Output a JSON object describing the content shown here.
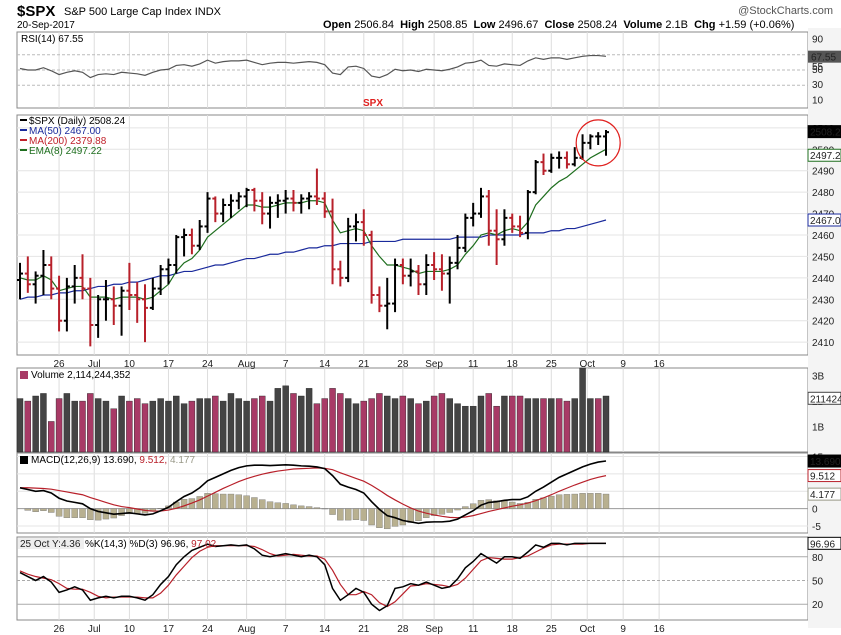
{
  "header": {
    "symbol": "$SPX",
    "description": "S&P 500 Large Cap Index",
    "exchange": "INDX",
    "date": "20-Sep-2017",
    "ohlc": {
      "open_label": "Open",
      "open": "2506.84",
      "high_label": "High",
      "high": "2508.85",
      "low_label": "Low",
      "low": "2496.67",
      "close_label": "Close",
      "close": "2508.24",
      "volume_label": "Volume",
      "volume": "2.1B",
      "chg_label": "Chg",
      "chg": "+1.59 (+0.06%)"
    },
    "watermark": "@StockCharts.com"
  },
  "annotation": {
    "text": "SPX",
    "color": "#e0201e"
  },
  "colors": {
    "up": "#000000",
    "down": "#b8202a",
    "ma50": "#1a2a9c",
    "ma200": "#c0202a",
    "ema8": "#1e6e1e",
    "vol_up": "#444444",
    "vol_down": "#a83a66",
    "macd": "#000000",
    "signal": "#b8202a",
    "hist": "#b8b090",
    "rsi": "#555555"
  },
  "chart_data": {
    "type": "line",
    "x_labels": [
      "26",
      "Jul",
      "10",
      "17",
      "24",
      "Aug",
      "7",
      "14",
      "21",
      "28",
      "Sep",
      "11",
      "18",
      "25",
      "Oct",
      "9",
      "16"
    ],
    "price": {
      "legend": [
        "$SPX (Daily) 2508.24",
        "MA(50) 2467.00",
        "MA(200) 2379.88",
        "EMA(8) 2497.22"
      ],
      "yticks": [
        2410,
        2420,
        2430,
        2440,
        2450,
        2460,
        2470,
        2480,
        2490,
        2500,
        2510
      ],
      "ylim": [
        2404,
        2516
      ],
      "last_labels": [
        "2508.24",
        "2497.22",
        "2467.00"
      ],
      "ohlc": [
        [
          2439,
          2447,
          2430,
          2442
        ],
        [
          2442,
          2450,
          2433,
          2437
        ],
        [
          2437,
          2443,
          2428,
          2441
        ],
        [
          2441,
          2453,
          2432,
          2446
        ],
        [
          2446,
          2450,
          2430,
          2435
        ],
        [
          2435,
          2441,
          2415,
          2420
        ],
        [
          2420,
          2440,
          2415,
          2436
        ],
        [
          2436,
          2446,
          2428,
          2440
        ],
        [
          2440,
          2451,
          2430,
          2435
        ],
        [
          2435,
          2440,
          2408,
          2418
        ],
        [
          2418,
          2432,
          2412,
          2430
        ],
        [
          2430,
          2439,
          2420,
          2430
        ],
        [
          2430,
          2436,
          2418,
          2427
        ],
        [
          2427,
          2436,
          2413,
          2434
        ],
        [
          2434,
          2447,
          2425,
          2432
        ],
        [
          2432,
          2438,
          2419,
          2430
        ],
        [
          2430,
          2437,
          2410,
          2426
        ],
        [
          2426,
          2440,
          2425,
          2435
        ],
        [
          2435,
          2446,
          2432,
          2444
        ],
        [
          2444,
          2449,
          2437,
          2446
        ],
        [
          2446,
          2460,
          2442,
          2459
        ],
        [
          2459,
          2463,
          2450,
          2460
        ],
        [
          2460,
          2463,
          2451,
          2455
        ],
        [
          2455,
          2467,
          2453,
          2464
        ],
        [
          2464,
          2480,
          2461,
          2477
        ],
        [
          2477,
          2478,
          2466,
          2470
        ],
        [
          2470,
          2477,
          2466,
          2474
        ],
        [
          2474,
          2479,
          2468,
          2476
        ],
        [
          2476,
          2480,
          2472,
          2478
        ],
        [
          2478,
          2482,
          2473,
          2481
        ],
        [
          2481,
          2482,
          2471,
          2476
        ],
        [
          2476,
          2480,
          2465,
          2470
        ],
        [
          2470,
          2478,
          2463,
          2475
        ],
        [
          2475,
          2479,
          2468,
          2476
        ],
        [
          2476,
          2481,
          2470,
          2477
        ],
        [
          2477,
          2481,
          2471,
          2475
        ],
        [
          2475,
          2479,
          2470,
          2477
        ],
        [
          2477,
          2480,
          2472,
          2478
        ],
        [
          2478,
          2491,
          2474,
          2477
        ],
        [
          2477,
          2480,
          2468,
          2471
        ],
        [
          2471,
          2477,
          2437,
          2444
        ],
        [
          2444,
          2448,
          2436,
          2440
        ],
        [
          2440,
          2468,
          2438,
          2464
        ],
        [
          2464,
          2470,
          2457,
          2466
        ],
        [
          2466,
          2472,
          2455,
          2460
        ],
        [
          2460,
          2462,
          2428,
          2432
        ],
        [
          2432,
          2436,
          2424,
          2427
        ],
        [
          2427,
          2440,
          2416,
          2428
        ],
        [
          2428,
          2449,
          2424,
          2446
        ],
        [
          2446,
          2449,
          2437,
          2441
        ],
        [
          2441,
          2449,
          2436,
          2443
        ],
        [
          2443,
          2446,
          2432,
          2437
        ],
        [
          2437,
          2451,
          2432,
          2446
        ],
        [
          2446,
          2452,
          2439,
          2444
        ],
        [
          2444,
          2451,
          2434,
          2442
        ],
        [
          2442,
          2450,
          2428,
          2447
        ],
        [
          2447,
          2460,
          2444,
          2454
        ],
        [
          2454,
          2470,
          2452,
          2468
        ],
        [
          2468,
          2475,
          2464,
          2470
        ],
        [
          2470,
          2482,
          2468,
          2478
        ],
        [
          2478,
          2481,
          2455,
          2462
        ],
        [
          2462,
          2472,
          2446,
          2458
        ],
        [
          2458,
          2472,
          2455,
          2468
        ],
        [
          2468,
          2470,
          2461,
          2464
        ],
        [
          2464,
          2469,
          2459,
          2461
        ],
        [
          2461,
          2481,
          2458,
          2480
        ],
        [
          2480,
          2495,
          2479,
          2494
        ],
        [
          2494,
          2498,
          2488,
          2490
        ],
        [
          2490,
          2498,
          2489,
          2496
        ],
        [
          2496,
          2499,
          2491,
          2496
        ],
        [
          2496,
          2499,
          2491,
          2493
        ],
        [
          2493,
          2501,
          2492,
          2496
        ],
        [
          2496,
          2507,
          2495,
          2503
        ],
        [
          2503,
          2507,
          2500,
          2506
        ],
        [
          2506,
          2508,
          2502,
          2506
        ],
        [
          2506,
          2509,
          2497,
          2508
        ]
      ],
      "ma50": [
        2430,
        2431,
        2431,
        2432,
        2432,
        2433,
        2433,
        2434,
        2434,
        2435,
        2436,
        2436,
        2437,
        2437,
        2438,
        2438,
        2439,
        2440,
        2441,
        2441,
        2442,
        2443,
        2443,
        2444,
        2445,
        2446,
        2446,
        2447,
        2448,
        2449,
        2449,
        2450,
        2451,
        2451,
        2452,
        2452,
        2453,
        2454,
        2454,
        2455,
        2455,
        2456,
        2456,
        2456,
        2456,
        2457,
        2457,
        2457,
        2457,
        2458,
        2458,
        2458,
        2458,
        2458,
        2458,
        2458,
        2459,
        2459,
        2459,
        2459,
        2460,
        2460,
        2460,
        2460,
        2460,
        2461,
        2461,
        2461,
        2462,
        2462,
        2463,
        2463,
        2464,
        2465,
        2466,
        2467
      ],
      "ema8": [
        2440,
        2439,
        2439,
        2441,
        2439,
        2434,
        2435,
        2436,
        2436,
        2431,
        2431,
        2431,
        2430,
        2431,
        2431,
        2431,
        2430,
        2431,
        2434,
        2437,
        2443,
        2447,
        2449,
        2453,
        2459,
        2462,
        2465,
        2468,
        2471,
        2474,
        2474,
        2473,
        2473,
        2474,
        2475,
        2475,
        2475,
        2476,
        2476,
        2475,
        2467,
        2461,
        2462,
        2463,
        2462,
        2455,
        2450,
        2446,
        2446,
        2445,
        2444,
        2442,
        2443,
        2443,
        2443,
        2444,
        2446,
        2451,
        2455,
        2460,
        2461,
        2460,
        2462,
        2463,
        2462,
        2466,
        2474,
        2478,
        2482,
        2485,
        2487,
        2490,
        2493,
        2496,
        2498,
        2500
      ]
    },
    "rsi": {
      "label": "RSI(14) 67.55",
      "yticks": [
        10,
        30,
        50,
        70,
        90
      ],
      "last_labels": [
        "67.55",
        "55"
      ],
      "ylim": [
        0,
        100
      ],
      "values": [
        52,
        50,
        50,
        53,
        49,
        44,
        47,
        49,
        47,
        40,
        44,
        45,
        44,
        47,
        46,
        45,
        43,
        47,
        50,
        51,
        56,
        57,
        55,
        58,
        63,
        59,
        61,
        62,
        62,
        63,
        60,
        57,
        59,
        60,
        60,
        59,
        60,
        61,
        60,
        57,
        46,
        44,
        54,
        55,
        52,
        42,
        40,
        44,
        51,
        49,
        50,
        48,
        51,
        50,
        49,
        51,
        54,
        59,
        60,
        63,
        56,
        55,
        58,
        57,
        56,
        62,
        66,
        64,
        66,
        66,
        64,
        66,
        68,
        69,
        69,
        68
      ]
    },
    "volume": {
      "label": "Volume 2,114,244,352",
      "yticks": [
        "1B",
        "2B",
        "3B"
      ],
      "ylim": [
        0,
        3.3
      ],
      "last_label": "2114244352",
      "values": [
        2.1,
        2.0,
        2.2,
        2.3,
        1.2,
        2.1,
        2.3,
        2.0,
        2.0,
        2.3,
        2.1,
        2.0,
        1.7,
        2.2,
        2.0,
        2.1,
        1.9,
        2.0,
        2.1,
        2.0,
        2.2,
        1.9,
        2.0,
        2.1,
        2.1,
        2.2,
        2.0,
        2.3,
        2.1,
        2.0,
        2.1,
        2.2,
        2.0,
        2.5,
        2.6,
        2.3,
        2.2,
        2.5,
        1.9,
        2.1,
        2.5,
        2.3,
        2.1,
        1.9,
        2.0,
        2.1,
        2.3,
        2.2,
        2.1,
        2.2,
        2.1,
        1.9,
        2.0,
        2.2,
        2.3,
        2.1,
        1.9,
        1.8,
        1.8,
        2.2,
        2.3,
        1.8,
        2.2,
        2.2,
        2.2,
        2.1,
        2.1,
        2.1,
        2.1,
        2.1,
        2.0,
        2.1,
        3.3,
        2.1,
        2.1,
        2.2
      ],
      "up": [
        1,
        0,
        1,
        1,
        0,
        0,
        1,
        1,
        0,
        0,
        1,
        1,
        0,
        1,
        0,
        0,
        0,
        1,
        1,
        1,
        1,
        1,
        0,
        1,
        1,
        0,
        1,
        1,
        1,
        1,
        0,
        0,
        1,
        1,
        1,
        0,
        1,
        1,
        0,
        0,
        0,
        0,
        1,
        1,
        0,
        0,
        0,
        1,
        1,
        0,
        1,
        0,
        1,
        0,
        0,
        1,
        1,
        1,
        1,
        1,
        0,
        0,
        1,
        0,
        0,
        1,
        1,
        0,
        1,
        0,
        0,
        1,
        1,
        1,
        0,
        1
      ]
    },
    "macd": {
      "label": "MACD(12,26,9)",
      "macd_value": "13.690",
      "signal_value": "9.512",
      "hist_value": "4.177",
      "yticks": [
        -5,
        0,
        5,
        10,
        15
      ],
      "ylim": [
        -7,
        16
      ],
      "last_labels": [
        "13.690",
        "9.512",
        "4.177"
      ],
      "macd": [
        6,
        5.5,
        5,
        5.2,
        4.5,
        3,
        2.2,
        1.8,
        1.4,
        0,
        -0.8,
        -1.2,
        -1.6,
        -1.4,
        -1.2,
        -1.5,
        -1.8,
        -1.5,
        -0.6,
        0.4,
        2,
        3.5,
        4.5,
        6,
        8,
        9,
        10,
        11,
        11.8,
        12.3,
        12.5,
        12.5,
        12.4,
        12.5,
        12.6,
        12.5,
        12.3,
        12.2,
        12,
        11.5,
        9.5,
        7,
        6.2,
        5.5,
        4.5,
        2,
        -0.2,
        -2,
        -2.6,
        -3.4,
        -3.8,
        -4.2,
        -3.9,
        -3.8,
        -3.8,
        -3.6,
        -3,
        -1.8,
        -0.6,
        1,
        1.8,
        2,
        2.4,
        2.6,
        2.6,
        3.4,
        5,
        6.2,
        7.6,
        9,
        10,
        11,
        12,
        12.8,
        13.4,
        13.7
      ],
      "signal": [
        6,
        6,
        5.9,
        5.8,
        5.6,
        5.2,
        4.8,
        4.4,
        4,
        3.2,
        2.5,
        1.8,
        1.1,
        0.6,
        0.3,
        -0.1,
        -0.5,
        -0.7,
        -0.7,
        -0.4,
        0.1,
        0.8,
        1.6,
        2.5,
        3.6,
        4.7,
        5.8,
        6.8,
        7.8,
        8.6,
        9.3,
        9.9,
        10.4,
        10.8,
        11.1,
        11.4,
        11.5,
        11.6,
        11.7,
        11.6,
        11.2,
        10.3,
        9.5,
        8.7,
        7.9,
        6.7,
        5.3,
        3.8,
        2.5,
        1.3,
        0.2,
        -0.7,
        -1.3,
        -1.8,
        -2.2,
        -2.5,
        -2.6,
        -2.4,
        -2,
        -1.4,
        -0.8,
        -0.3,
        0.2,
        0.7,
        1.1,
        1.6,
        2.3,
        3.1,
        4,
        5,
        5.9,
        6.8,
        7.6,
        8.4,
        9,
        9.5
      ]
    },
    "stoch": {
      "label_prefix": "25 Oct Y:4.36",
      "label": "%K(14,3) %D(3) 96.96,",
      "d_value": "97.02",
      "yticks": [
        20,
        50,
        80
      ],
      "ylim": [
        0,
        105
      ],
      "last_labels": [
        "96.96"
      ],
      "k": [
        60,
        55,
        50,
        55,
        48,
        35,
        38,
        42,
        38,
        25,
        28,
        30,
        28,
        30,
        30,
        28,
        25,
        32,
        45,
        55,
        70,
        80,
        88,
        92,
        96,
        93,
        94,
        95,
        94,
        95,
        90,
        82,
        80,
        82,
        84,
        82,
        80,
        82,
        80,
        70,
        40,
        25,
        32,
        40,
        35,
        20,
        12,
        18,
        40,
        42,
        46,
        44,
        48,
        44,
        40,
        42,
        52,
        66,
        74,
        84,
        78,
        72,
        80,
        80,
        78,
        86,
        95,
        92,
        97,
        97,
        95,
        97,
        97,
        97,
        97,
        97
      ],
      "d": [
        62,
        58,
        55,
        53,
        51,
        46,
        40,
        39,
        39,
        35,
        30,
        28,
        29,
        29,
        29,
        29,
        28,
        28,
        34,
        44,
        57,
        68,
        79,
        87,
        92,
        94,
        94,
        94,
        94,
        94,
        93,
        89,
        84,
        81,
        82,
        83,
        82,
        81,
        81,
        77,
        63,
        45,
        32,
        32,
        36,
        32,
        22,
        17,
        23,
        33,
        43,
        44,
        46,
        45,
        44,
        42,
        45,
        53,
        64,
        75,
        79,
        78,
        77,
        77,
        79,
        81,
        86,
        91,
        95,
        96,
        96,
        96,
        96,
        97,
        97,
        97
      ]
    }
  }
}
